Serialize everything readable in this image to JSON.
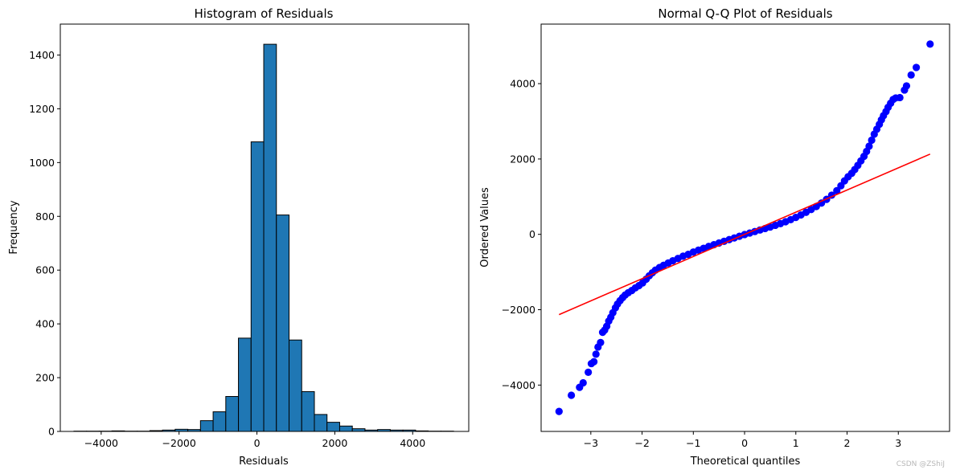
{
  "chart_data": [
    {
      "type": "bar",
      "title": "Histogram of Residuals",
      "xlabel": "Residuals",
      "ylabel": "Frequency",
      "xlim": [
        -5050,
        5440
      ],
      "ylim": [
        0,
        1515
      ],
      "xticks": [
        -4000,
        -2000,
        0,
        2000,
        4000
      ],
      "xtick_labels": [
        "−4000",
        "−2000",
        "0",
        "2000",
        "4000"
      ],
      "yticks": [
        0,
        200,
        400,
        600,
        800,
        1000,
        1200,
        1400
      ],
      "ytick_labels": [
        "0",
        "200",
        "400",
        "600",
        "800",
        "1000",
        "1200",
        "1400"
      ],
      "bar_color": "#1f77b4",
      "edge_color": "#000000",
      "bin_start": -4700,
      "bin_width": 325,
      "values": [
        1,
        1,
        1,
        2,
        1,
        1,
        3,
        5,
        8,
        7,
        40,
        73,
        130,
        347,
        1077,
        1440,
        805,
        340,
        148,
        63,
        34,
        20,
        10,
        5,
        7,
        5,
        5,
        2,
        1,
        1
      ]
    },
    {
      "type": "scatter",
      "title": "Normal Q-Q Plot of Residuals",
      "xlabel": "Theoretical quantiles",
      "ylabel": "Ordered Values",
      "xlim": [
        -3.97,
        4.0
      ],
      "ylim": [
        -5230,
        5580
      ],
      "xticks": [
        -3,
        -2,
        -1,
        0,
        1,
        2,
        3
      ],
      "xtick_labels": [
        "−3",
        "−2",
        "−1",
        "0",
        "1",
        "2",
        "3"
      ],
      "yticks": [
        -4000,
        -2000,
        0,
        2000,
        4000
      ],
      "ytick_labels": [
        "−4000",
        "−2000",
        "0",
        "2000",
        "4000"
      ],
      "point_color": "#0000ff",
      "line_color": "#ff0000",
      "fit_line": {
        "x": [
          -3.62,
          3.62
        ],
        "y": [
          -2130,
          2130
        ]
      },
      "points": [
        [
          -3.62,
          -4700
        ],
        [
          -3.38,
          -4270
        ],
        [
          -3.22,
          -4060
        ],
        [
          -3.15,
          -3940
        ],
        [
          -3.05,
          -3660
        ],
        [
          -2.99,
          -3430
        ],
        [
          -2.94,
          -3380
        ],
        [
          -2.9,
          -3180
        ],
        [
          -2.86,
          -2990
        ],
        [
          -2.81,
          -2870
        ],
        [
          -2.77,
          -2600
        ],
        [
          -2.73,
          -2540
        ],
        [
          -2.69,
          -2440
        ],
        [
          -2.65,
          -2300
        ],
        [
          -2.61,
          -2200
        ],
        [
          -2.57,
          -2080
        ],
        [
          -2.52,
          -1950
        ],
        [
          -2.48,
          -1850
        ],
        [
          -2.43,
          -1760
        ],
        [
          -2.38,
          -1680
        ],
        [
          -2.33,
          -1610
        ],
        [
          -2.27,
          -1550
        ],
        [
          -2.2,
          -1490
        ],
        [
          -2.13,
          -1420
        ],
        [
          -2.06,
          -1360
        ],
        [
          -1.99,
          -1290
        ],
        [
          -1.92,
          -1190
        ],
        [
          -1.86,
          -1100
        ],
        [
          -1.8,
          -1020
        ],
        [
          -1.74,
          -950
        ],
        [
          -1.66,
          -880
        ],
        [
          -1.58,
          -820
        ],
        [
          -1.49,
          -760
        ],
        [
          -1.4,
          -700
        ],
        [
          -1.3,
          -640
        ],
        [
          -1.2,
          -580
        ],
        [
          -1.1,
          -530
        ],
        [
          -1.0,
          -470
        ],
        [
          -0.9,
          -420
        ],
        [
          -0.8,
          -370
        ],
        [
          -0.7,
          -320
        ],
        [
          -0.6,
          -275
        ],
        [
          -0.5,
          -230
        ],
        [
          -0.4,
          -185
        ],
        [
          -0.3,
          -140
        ],
        [
          -0.2,
          -95
        ],
        [
          -0.1,
          -50
        ],
        [
          0.0,
          -5
        ],
        [
          0.1,
          35
        ],
        [
          0.2,
          75
        ],
        [
          0.3,
          115
        ],
        [
          0.4,
          155
        ],
        [
          0.5,
          195
        ],
        [
          0.6,
          240
        ],
        [
          0.7,
          285
        ],
        [
          0.8,
          335
        ],
        [
          0.9,
          390
        ],
        [
          1.0,
          450
        ],
        [
          1.1,
          515
        ],
        [
          1.2,
          585
        ],
        [
          1.3,
          660
        ],
        [
          1.4,
          740
        ],
        [
          1.5,
          830
        ],
        [
          1.6,
          930
        ],
        [
          1.7,
          1040
        ],
        [
          1.8,
          1160
        ],
        [
          1.88,
          1290
        ],
        [
          1.95,
          1420
        ],
        [
          2.02,
          1530
        ],
        [
          2.09,
          1620
        ],
        [
          2.15,
          1720
        ],
        [
          2.21,
          1830
        ],
        [
          2.27,
          1950
        ],
        [
          2.33,
          2070
        ],
        [
          2.38,
          2200
        ],
        [
          2.43,
          2340
        ],
        [
          2.48,
          2500
        ],
        [
          2.53,
          2660
        ],
        [
          2.58,
          2790
        ],
        [
          2.63,
          2920
        ],
        [
          2.67,
          3040
        ],
        [
          2.71,
          3150
        ],
        [
          2.76,
          3260
        ],
        [
          2.8,
          3370
        ],
        [
          2.85,
          3480
        ],
        [
          2.9,
          3580
        ],
        [
          2.95,
          3620
        ],
        [
          3.03,
          3630
        ],
        [
          3.12,
          3830
        ],
        [
          3.16,
          3940
        ],
        [
          3.25,
          4230
        ],
        [
          3.35,
          4430
        ],
        [
          3.62,
          5050
        ]
      ]
    }
  ],
  "watermark": "CSDN @ZShiJ"
}
